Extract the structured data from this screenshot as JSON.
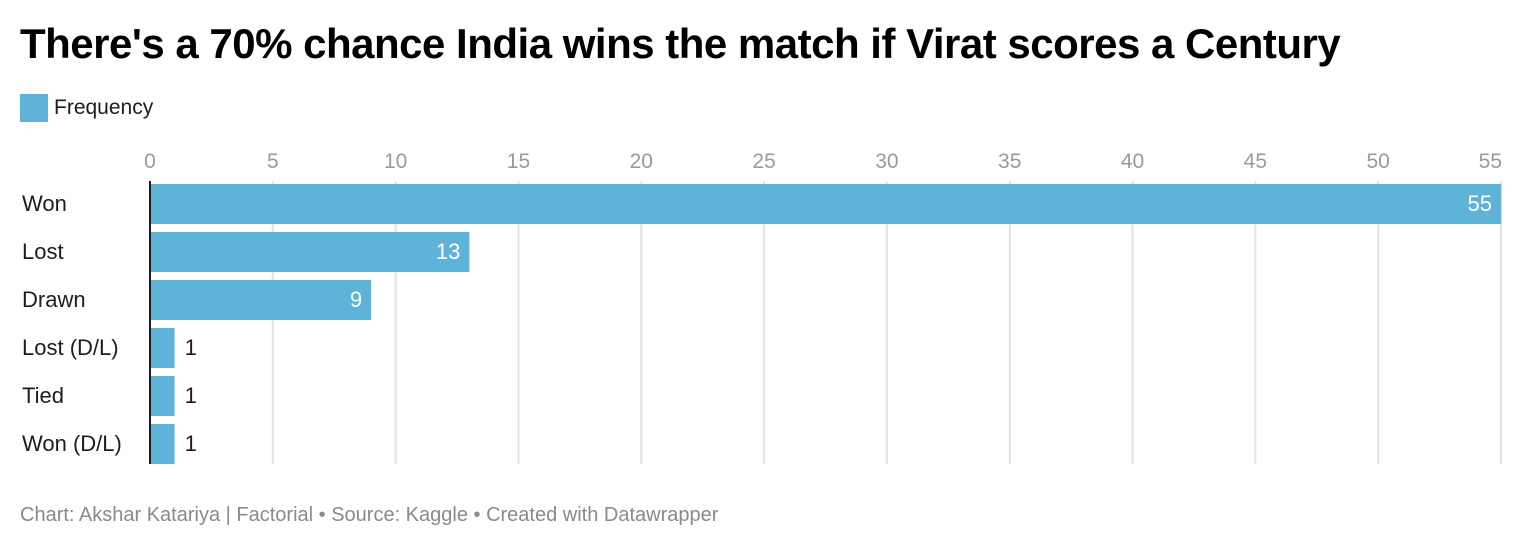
{
  "title": "There's a 70% chance India wins the match if Virat scores a Century",
  "legend": {
    "label": "Frequency",
    "color": "#5fb3d9"
  },
  "footer": "Chart: Akshar Katariya | Factorial • Source: Kaggle • Created with Datawrapper",
  "chart_data": {
    "type": "bar",
    "orientation": "horizontal",
    "title": "There's a 70% chance India wins the match if Virat scores a Century",
    "categories": [
      "Won",
      "Lost",
      "Drawn",
      "Lost (D/L)",
      "Tied",
      "Won (D/L)"
    ],
    "series": [
      {
        "name": "Frequency",
        "values": [
          55,
          13,
          9,
          1,
          1,
          1
        ],
        "color": "#5fb3d9"
      }
    ],
    "xlim": [
      0,
      55
    ],
    "xticks": [
      0,
      5,
      10,
      15,
      20,
      25,
      30,
      35,
      40,
      45,
      50,
      55
    ],
    "xaxis_position": "top",
    "grid": true,
    "legend_position": "top-left",
    "data_labels": true
  }
}
